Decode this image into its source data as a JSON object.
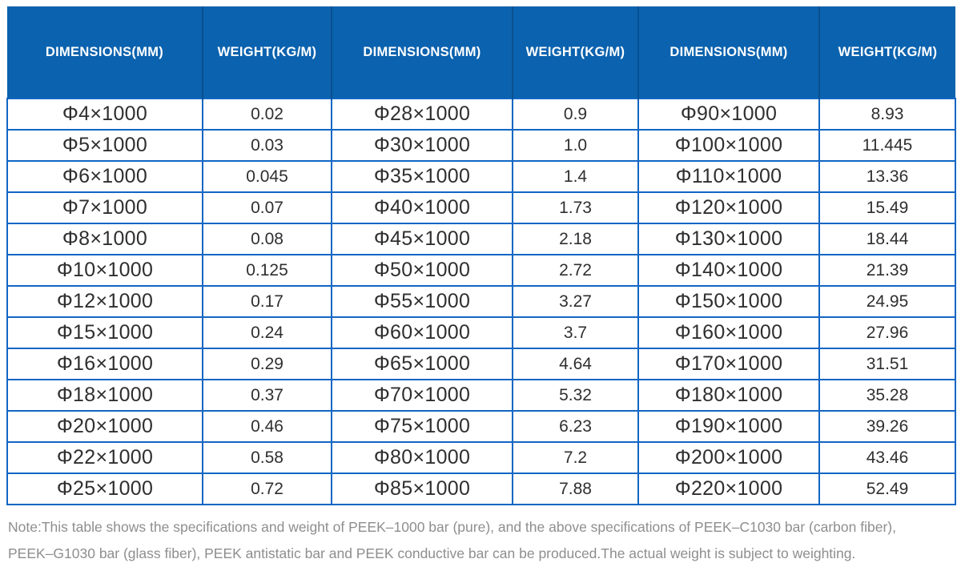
{
  "colors": {
    "header_background": "#0b62ae",
    "header_text": "#ffffff",
    "header_divider": "#09508f",
    "grid_border": "#1166c4",
    "cell_text": "#2f2f2f",
    "note_text": "#8e8e8e"
  },
  "table": {
    "headers": [
      "DIMENSIONS(MM)",
      "WEIGHT(KG/M)",
      "DIMENSIONS(MM)",
      "WEIGHT(KG/M)",
      "DIMENSIONS(MM)",
      "WEIGHT(KG/M)"
    ],
    "rows": [
      [
        "Φ4×1000",
        "0.02",
        "Φ28×1000",
        "0.9",
        "Φ90×1000",
        "8.93"
      ],
      [
        "Φ5×1000",
        "0.03",
        "Φ30×1000",
        "1.0",
        "Φ100×1000",
        "11.445"
      ],
      [
        "Φ6×1000",
        "0.045",
        "Φ35×1000",
        "1.4",
        "Φ110×1000",
        "13.36"
      ],
      [
        "Φ7×1000",
        "0.07",
        "Φ40×1000",
        "1.73",
        "Φ120×1000",
        "15.49"
      ],
      [
        "Φ8×1000",
        "0.08",
        "Φ45×1000",
        "2.18",
        "Φ130×1000",
        "18.44"
      ],
      [
        "Φ10×1000",
        "0.125",
        "Φ50×1000",
        "2.72",
        "Φ140×1000",
        "21.39"
      ],
      [
        "Φ12×1000",
        "0.17",
        "Φ55×1000",
        "3.27",
        "Φ150×1000",
        "24.95"
      ],
      [
        "Φ15×1000",
        "0.24",
        "Φ60×1000",
        "3.7",
        "Φ160×1000",
        "27.96"
      ],
      [
        "Φ16×1000",
        "0.29",
        "Φ65×1000",
        "4.64",
        "Φ170×1000",
        "31.51"
      ],
      [
        "Φ18×1000",
        "0.37",
        "Φ70×1000",
        "5.32",
        "Φ180×1000",
        "35.28"
      ],
      [
        "Φ20×1000",
        "0.46",
        "Φ75×1000",
        "6.23",
        "Φ190×1000",
        "39.26"
      ],
      [
        "Φ22×1000",
        "0.58",
        "Φ80×1000",
        "7.2",
        "Φ200×1000",
        "43.46"
      ],
      [
        "Φ25×1000",
        "0.72",
        "Φ85×1000",
        "7.88",
        "Φ220×1000",
        "52.49"
      ]
    ]
  },
  "note": {
    "line1": "Note:This table shows the specifications and weight of PEEK–1000 bar (pure), and the above specifications of PEEK–C1030 bar (carbon fiber),",
    "line2": "PEEK–G1030 bar (glass fiber), PEEK antistatic bar and PEEK conductive bar can be produced.The actual weight is subject to weighting."
  }
}
